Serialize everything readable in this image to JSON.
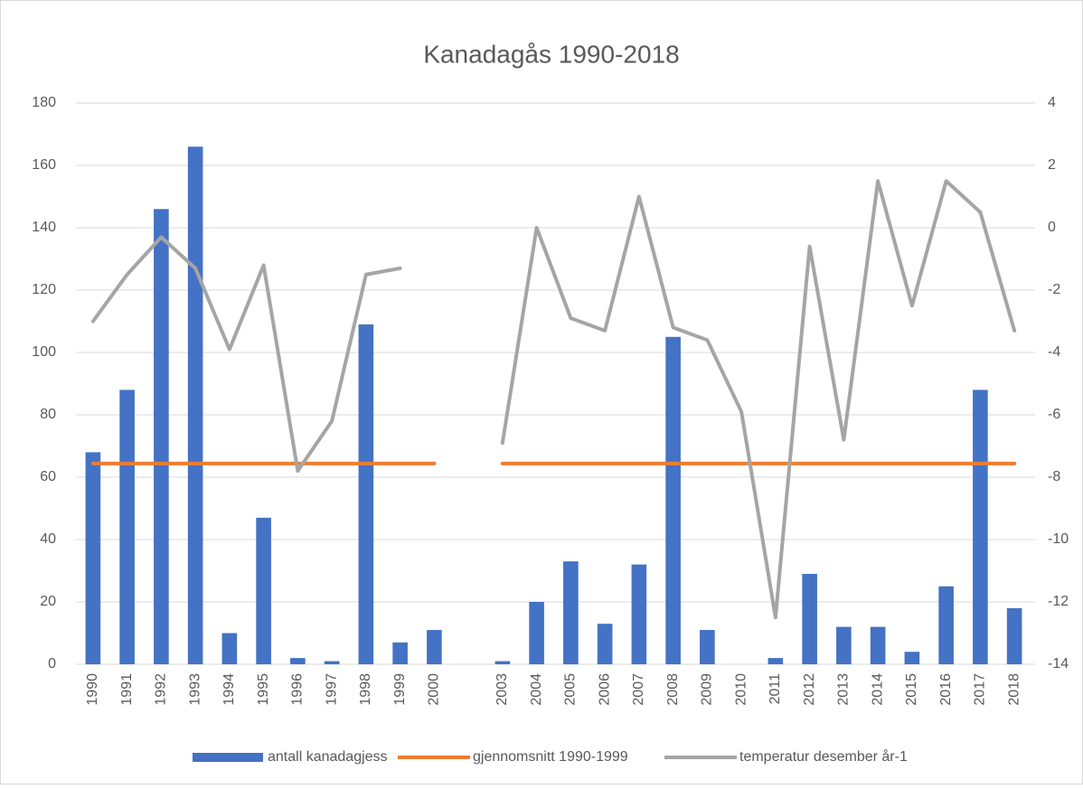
{
  "chart_data": {
    "type": "combo",
    "title": "Kanadagås 1990-2018",
    "categories": [
      "1990",
      "1991",
      "1992",
      "1993",
      "1994",
      "1995",
      "1996",
      "1997",
      "1998",
      "1999",
      "2000",
      null,
      "2003",
      "2004",
      "2005",
      "2006",
      "2007",
      "2008",
      "2009",
      "2010",
      "2011",
      "2012",
      "2013",
      "2014",
      "2015",
      "2016",
      "2017",
      "2018"
    ],
    "series": [
      {
        "name": "antall kanadagjess",
        "type": "bar",
        "color": "#4472c4",
        "values": [
          68,
          88,
          146,
          166,
          10,
          47,
          2,
          1,
          109,
          7,
          11,
          null,
          1,
          20,
          33,
          13,
          32,
          105,
          11,
          null,
          2,
          29,
          12,
          12,
          4,
          25,
          88,
          18
        ]
      },
      {
        "name": "gjennomsnitt 1990-1999",
        "type": "line",
        "color": "#ed7d31",
        "values": [
          64.4,
          64.4,
          64.4,
          64.4,
          64.4,
          64.4,
          64.4,
          64.4,
          64.4,
          64.4,
          64.4,
          null,
          64.4,
          64.4,
          64.4,
          64.4,
          64.4,
          64.4,
          64.4,
          64.4,
          64.4,
          64.4,
          64.4,
          64.4,
          64.4,
          64.4,
          64.4,
          64.4
        ]
      },
      {
        "name": "temperatur desember år-1",
        "type": "line",
        "axis": "y2",
        "color": "#a5a5a5",
        "values": [
          -3.0,
          -1.5,
          -0.3,
          -1.3,
          -3.9,
          -1.2,
          -7.8,
          -6.2,
          -1.5,
          -1.3,
          null,
          null,
          -6.9,
          0,
          -2.9,
          -3.3,
          1.0,
          -3.2,
          -3.6,
          -5.9,
          -12.5,
          -0.6,
          -6.8,
          1.5,
          -2.5,
          1.5,
          0.5,
          -3.3
        ]
      }
    ],
    "ylim": [
      0,
      180
    ],
    "yticks": [
      0,
      20,
      40,
      60,
      80,
      100,
      120,
      140,
      160,
      180
    ],
    "y2lim": [
      -14,
      4
    ],
    "y2ticks": [
      -14,
      -12,
      -10,
      -8,
      -6,
      -4,
      -2,
      0,
      2,
      4
    ],
    "grid": true,
    "legend": "bottom"
  }
}
